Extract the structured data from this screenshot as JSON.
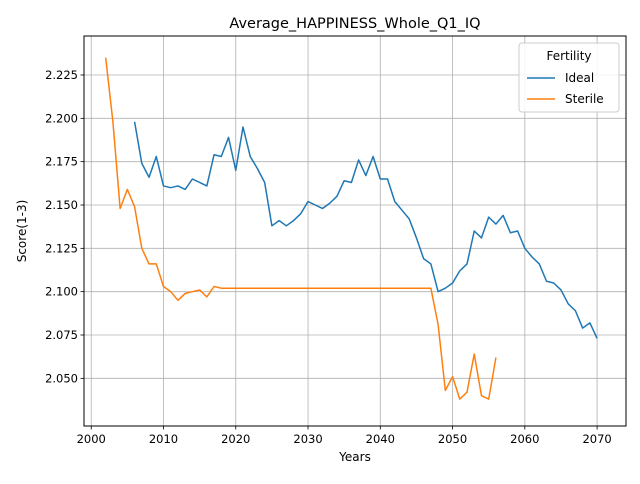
{
  "chart_data": {
    "type": "line",
    "title": "Average_HAPPINESS_Whole_Q1_IQ",
    "xlabel": "Years",
    "ylabel": "Score(1-3)",
    "xlim": [
      1999,
      2074
    ],
    "ylim": [
      2.0225,
      2.2475
    ],
    "xticks": [
      2000,
      2010,
      2020,
      2030,
      2040,
      2050,
      2060,
      2070
    ],
    "yticks": [
      2.05,
      2.075,
      2.1,
      2.125,
      2.15,
      2.175,
      2.2,
      2.225
    ],
    "ytick_format": 3,
    "grid": true,
    "legend": {
      "title": "Fertility",
      "position": "top-right"
    },
    "series": [
      {
        "name": "Ideal",
        "color": "#1f77b4",
        "x": [
          2006,
          2007,
          2008,
          2009,
          2010,
          2011,
          2012,
          2013,
          2014,
          2015,
          2016,
          2017,
          2018,
          2019,
          2020,
          2021,
          2022,
          2023,
          2024,
          2025,
          2026,
          2027,
          2028,
          2029,
          2030,
          2031,
          2032,
          2033,
          2034,
          2035,
          2036,
          2037,
          2038,
          2039,
          2040,
          2041,
          2042,
          2043,
          2044,
          2045,
          2046,
          2047,
          2048,
          2049,
          2050,
          2051,
          2052,
          2053,
          2054,
          2055,
          2056,
          2057,
          2058,
          2059,
          2060,
          2061,
          2062,
          2063,
          2064,
          2065,
          2066,
          2067,
          2068,
          2069,
          2070
        ],
        "y": [
          2.198,
          2.174,
          2.166,
          2.178,
          2.161,
          2.16,
          2.161,
          2.159,
          2.165,
          2.163,
          2.161,
          2.179,
          2.178,
          2.189,
          2.17,
          2.195,
          2.178,
          2.171,
          2.163,
          2.138,
          2.141,
          2.138,
          2.141,
          2.145,
          2.152,
          2.15,
          2.148,
          2.151,
          2.155,
          2.164,
          2.163,
          2.176,
          2.167,
          2.178,
          2.165,
          2.165,
          2.152,
          2.147,
          2.142,
          2.131,
          2.119,
          2.116,
          2.1,
          2.102,
          2.105,
          2.112,
          2.116,
          2.135,
          2.131,
          2.143,
          2.139,
          2.144,
          2.134,
          2.135,
          2.125,
          2.12,
          2.116,
          2.106,
          2.105,
          2.101,
          2.093,
          2.089,
          2.079,
          2.082,
          2.073
        ]
      },
      {
        "name": "Sterile",
        "color": "#ff7f0e",
        "x": [
          2002,
          2003,
          2004,
          2005,
          2006,
          2007,
          2008,
          2009,
          2010,
          2011,
          2012,
          2013,
          2014,
          2015,
          2016,
          2017,
          2018,
          2019,
          2020,
          2021,
          2022,
          2023,
          2024,
          2025,
          2026,
          2027,
          2028,
          2029,
          2030,
          2031,
          2032,
          2033,
          2034,
          2035,
          2036,
          2037,
          2038,
          2039,
          2040,
          2041,
          2042,
          2043,
          2044,
          2045,
          2046,
          2047,
          2048,
          2049,
          2050,
          2051,
          2052,
          2053,
          2054,
          2055,
          2056
        ],
        "y": [
          2.235,
          2.198,
          2.148,
          2.159,
          2.149,
          2.125,
          2.116,
          2.116,
          2.103,
          2.1,
          2.095,
          2.099,
          2.1,
          2.101,
          2.097,
          2.103,
          2.102,
          2.102,
          2.102,
          2.102,
          2.102,
          2.102,
          2.102,
          2.102,
          2.102,
          2.102,
          2.102,
          2.102,
          2.102,
          2.102,
          2.102,
          2.102,
          2.102,
          2.102,
          2.102,
          2.102,
          2.102,
          2.102,
          2.102,
          2.102,
          2.102,
          2.102,
          2.102,
          2.102,
          2.102,
          2.102,
          2.081,
          2.043,
          2.051,
          2.038,
          2.042,
          2.064,
          2.04,
          2.038,
          2.062
        ]
      }
    ]
  }
}
